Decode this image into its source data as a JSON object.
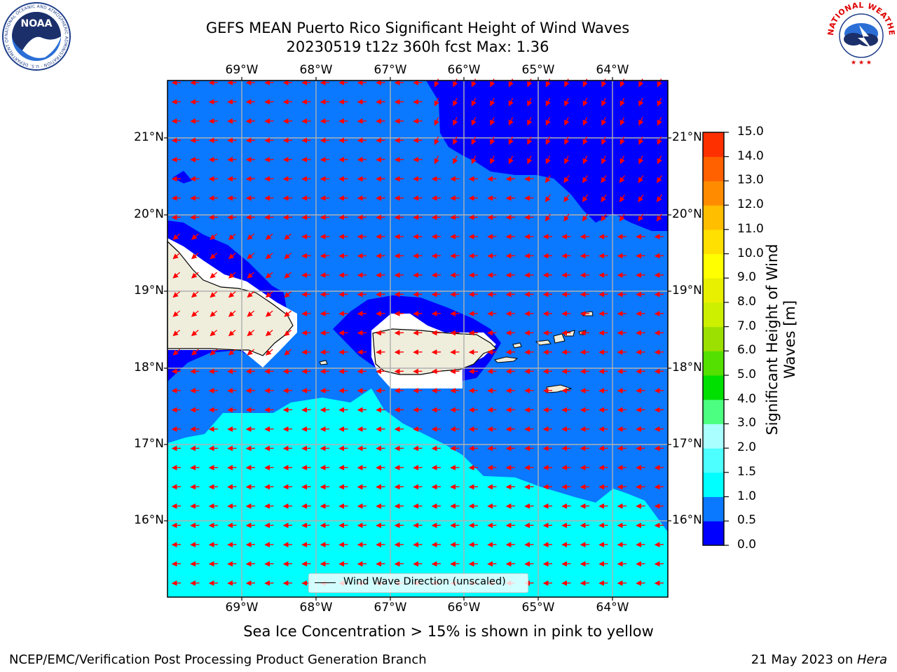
{
  "title": {
    "line1": "GEFS MEAN Puerto Rico Significant Height of Wind Waves",
    "line2": "20230519 t12z 360h fcst   Max: 1.36"
  },
  "map": {
    "longitude_labels": [
      "69°W",
      "68°W",
      "67°W",
      "66°W",
      "65°W",
      "64°W"
    ],
    "latitude_labels": [
      "21°N",
      "20°N",
      "19°N",
      "18°N",
      "17°N",
      "16°N"
    ],
    "legend_label": "Wind Wave Direction (unscaled)",
    "vector_color": "#ff0000",
    "gridline_color": "#b0b0b0"
  },
  "colorbar": {
    "title": "Significant Height of Wind Waves [m]",
    "title_line1": "Significant Height of Wind",
    "title_line2": "Waves [m]",
    "ticks": [
      "0.0",
      "0.5",
      "1.0",
      "1.5",
      "2.0",
      "3.0",
      "4.0",
      "5.0",
      "6.0",
      "7.0",
      "8.0",
      "9.0",
      "10.0",
      "11.0",
      "12.0",
      "13.0",
      "14.0",
      "15.0"
    ],
    "colors": [
      "#0000ff",
      "#0a78ff",
      "#00ffff",
      "#4dffff",
      "#aaffff",
      "#4cff80",
      "#00e000",
      "#54e000",
      "#9be000",
      "#ccf000",
      "#e8f000",
      "#ffff00",
      "#ffe000",
      "#ffbe00",
      "#ff8c00",
      "#ff6000",
      "#ff3000",
      "#ff0000"
    ]
  },
  "caption": "Sea Ice Concentration > 15% is shown in pink to yellow",
  "footer": {
    "left": "NCEP/EMC/Verification Post Processing Product Generation Branch",
    "right_prefix": "21 May 2023 on ",
    "right_host": "Hera"
  },
  "logos": {
    "noaa": {
      "label": "NOAA",
      "ring_text": "NATIONAL OCEANIC AND ATMOSPHERIC ADMINISTRATION · U.S. DEPARTMENT OF COMMERCE"
    },
    "nws": {
      "ring_text": "NATIONAL WEATHER SERVICE"
    }
  }
}
